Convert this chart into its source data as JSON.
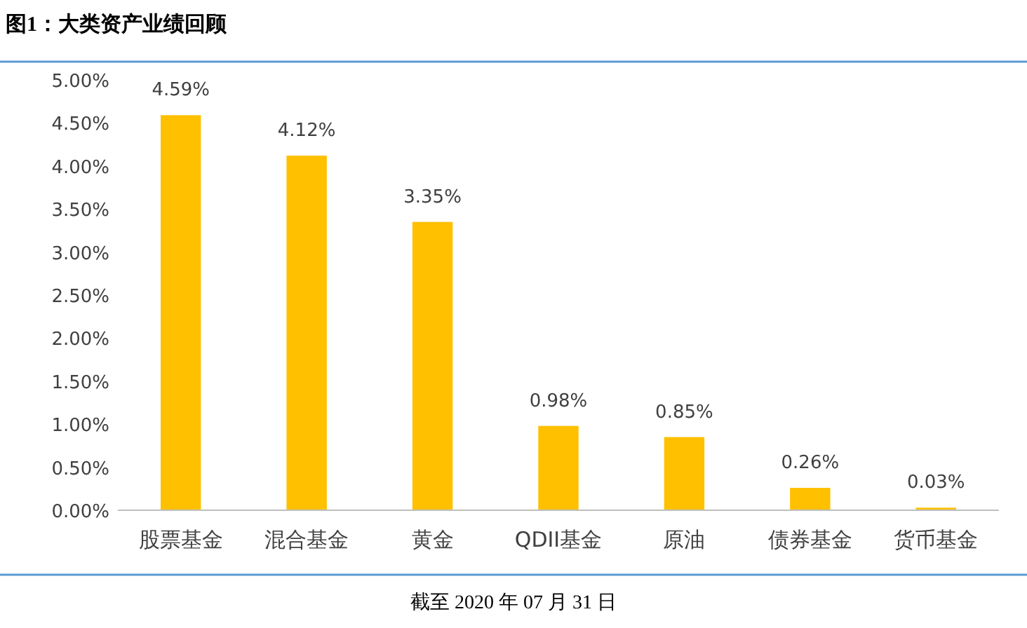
{
  "chart_data": {
    "type": "bar",
    "title": "图1：大类资产业绩回顾",
    "categories": [
      "股票基金",
      "混合基金",
      "黄金",
      "QDII基金",
      "原油",
      "债券基金",
      "货币基金"
    ],
    "values": [
      4.59,
      4.12,
      3.35,
      0.98,
      0.85,
      0.26,
      0.03
    ],
    "value_labels": [
      "4.59%",
      "4.12%",
      "3.35%",
      "0.98%",
      "0.85%",
      "0.26%",
      "0.03%"
    ],
    "color": "#ffc000",
    "ylim": [
      0,
      5
    ],
    "yticks": [
      {
        "value": 0,
        "label": "0.00%"
      },
      {
        "value": 0.5,
        "label": "0.50%"
      },
      {
        "value": 1,
        "label": "1.00%"
      },
      {
        "value": 1.5,
        "label": "1.50%"
      },
      {
        "value": 2,
        "label": "2.00%"
      },
      {
        "value": 2.5,
        "label": "2.50%"
      },
      {
        "value": 3,
        "label": "3.00%"
      },
      {
        "value": 3.5,
        "label": "3.50%"
      },
      {
        "value": 4,
        "label": "4.00%"
      },
      {
        "value": 4.5,
        "label": "4.50%"
      },
      {
        "value": 5,
        "label": "5.00%"
      }
    ],
    "annotations": [
      "截至 2020 年 07 月 31 日"
    ]
  }
}
